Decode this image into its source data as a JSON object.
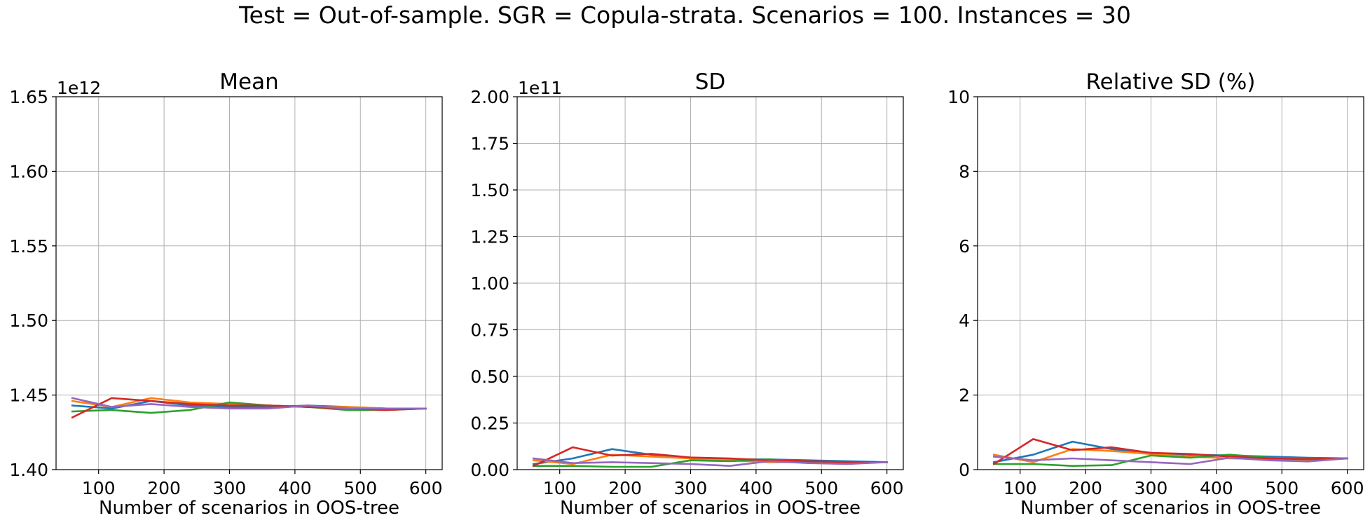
{
  "suptitle": "Test = Out-of-sample. SGR = Copula-strata. Scenarios = 100. Instances = 30",
  "colors": [
    "#1f77b4",
    "#ff7f0e",
    "#2ca02c",
    "#d62728",
    "#9467bd"
  ],
  "chart_data": [
    {
      "type": "line",
      "title": "Mean",
      "xlabel": "Number of scenarios in OOS-tree",
      "ylabel": "",
      "offset_text": "1e12",
      "xlim": [
        35,
        625
      ],
      "ylim": [
        1.4,
        1.65
      ],
      "xticks": [
        100,
        200,
        300,
        400,
        500,
        600
      ],
      "xtick_labels": [
        "100",
        "200",
        "300",
        "400",
        "500",
        "600"
      ],
      "yticks": [
        1.4,
        1.45,
        1.5,
        1.55,
        1.6,
        1.65
      ],
      "ytick_labels": [
        "1.40",
        "1.45",
        "1.50",
        "1.55",
        "1.60",
        "1.65"
      ],
      "grid": true,
      "x": [
        60,
        120,
        180,
        240,
        300,
        360,
        420,
        480,
        540,
        600
      ],
      "series": [
        {
          "values": [
            1.443,
            1.441,
            1.446,
            1.443,
            1.442,
            1.442,
            1.443,
            1.442,
            1.441,
            1.441
          ]
        },
        {
          "values": [
            1.446,
            1.442,
            1.448,
            1.445,
            1.444,
            1.443,
            1.442,
            1.442,
            1.441,
            1.441
          ]
        },
        {
          "values": [
            1.439,
            1.44,
            1.438,
            1.44,
            1.445,
            1.443,
            1.442,
            1.44,
            1.44,
            1.441
          ]
        },
        {
          "values": [
            1.435,
            1.448,
            1.446,
            1.444,
            1.443,
            1.443,
            1.442,
            1.441,
            1.44,
            1.441
          ]
        },
        {
          "values": [
            1.448,
            1.442,
            1.444,
            1.442,
            1.441,
            1.441,
            1.443,
            1.441,
            1.441,
            1.441
          ]
        }
      ]
    },
    {
      "type": "line",
      "title": "SD",
      "xlabel": "Number of scenarios in OOS-tree",
      "ylabel": "",
      "offset_text": "1e11",
      "xlim": [
        35,
        625
      ],
      "ylim": [
        0,
        2.0
      ],
      "xticks": [
        100,
        200,
        300,
        400,
        500,
        600
      ],
      "xtick_labels": [
        "100",
        "200",
        "300",
        "400",
        "500",
        "600"
      ],
      "yticks": [
        0,
        0.25,
        0.5,
        0.75,
        1.0,
        1.25,
        1.5,
        1.75,
        2.0
      ],
      "ytick_labels": [
        "0.00",
        "0.25",
        "0.50",
        "0.75",
        "1.00",
        "1.25",
        "1.50",
        "1.75",
        "2.00"
      ],
      "grid": true,
      "x": [
        60,
        120,
        180,
        240,
        300,
        360,
        420,
        480,
        540,
        600
      ],
      "series": [
        {
          "values": [
            0.03,
            0.06,
            0.11,
            0.08,
            0.06,
            0.055,
            0.055,
            0.05,
            0.045,
            0.04
          ]
        },
        {
          "values": [
            0.05,
            0.03,
            0.08,
            0.07,
            0.06,
            0.05,
            0.04,
            0.04,
            0.035,
            0.04
          ]
        },
        {
          "values": [
            0.02,
            0.02,
            0.015,
            0.015,
            0.05,
            0.045,
            0.055,
            0.045,
            0.04,
            0.04
          ]
        },
        {
          "values": [
            0.02,
            0.12,
            0.075,
            0.085,
            0.065,
            0.06,
            0.05,
            0.045,
            0.04,
            0.04
          ]
        },
        {
          "values": [
            0.06,
            0.035,
            0.04,
            0.035,
            0.03,
            0.02,
            0.045,
            0.035,
            0.03,
            0.04
          ]
        }
      ]
    },
    {
      "type": "line",
      "title": "Relative SD (%)",
      "xlabel": "Number of scenarios in OOS-tree",
      "ylabel": "",
      "offset_text": "",
      "xlim": [
        35,
        625
      ],
      "ylim": [
        0,
        10
      ],
      "xticks": [
        100,
        200,
        300,
        400,
        500,
        600
      ],
      "xtick_labels": [
        "100",
        "200",
        "300",
        "400",
        "500",
        "600"
      ],
      "yticks": [
        0,
        2,
        4,
        6,
        8,
        10
      ],
      "ytick_labels": [
        "0",
        "2",
        "4",
        "6",
        "8",
        "10"
      ],
      "grid": true,
      "x": [
        60,
        120,
        180,
        240,
        300,
        360,
        420,
        480,
        540,
        600
      ],
      "series": [
        {
          "values": [
            0.2,
            0.4,
            0.75,
            0.55,
            0.45,
            0.4,
            0.38,
            0.35,
            0.32,
            0.3
          ]
        },
        {
          "values": [
            0.4,
            0.2,
            0.55,
            0.5,
            0.42,
            0.35,
            0.3,
            0.28,
            0.25,
            0.3
          ]
        },
        {
          "values": [
            0.15,
            0.15,
            0.1,
            0.12,
            0.38,
            0.32,
            0.4,
            0.32,
            0.3,
            0.3
          ]
        },
        {
          "values": [
            0.15,
            0.82,
            0.52,
            0.6,
            0.45,
            0.42,
            0.35,
            0.3,
            0.28,
            0.3
          ]
        },
        {
          "values": [
            0.35,
            0.25,
            0.3,
            0.25,
            0.2,
            0.15,
            0.32,
            0.25,
            0.22,
            0.3
          ]
        }
      ]
    }
  ]
}
